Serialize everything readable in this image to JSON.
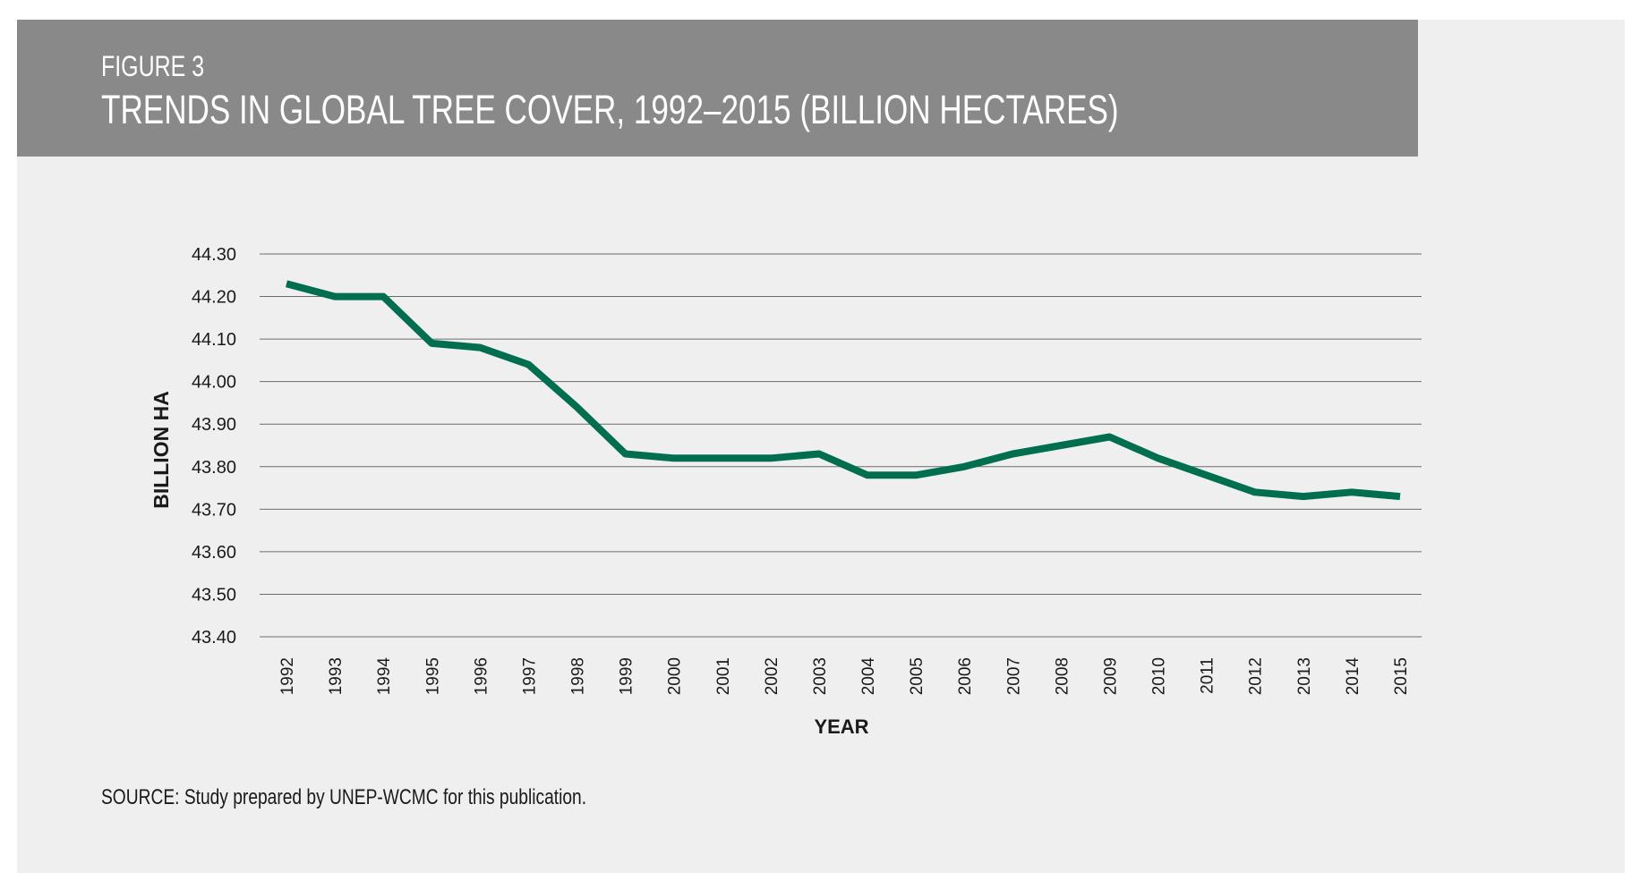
{
  "figure": {
    "label": "FIGURE 3",
    "title": "TRENDS IN GLOBAL TREE COVER, 1992–2015 (BILLION HECTARES)"
  },
  "source_note": "SOURCE: Study prepared by UNEP-WCMC for this publication.",
  "colors": {
    "header_bg": "#898989",
    "panel_bg": "#efefef",
    "line": "#006e4f",
    "grid": "#6b6b6b"
  },
  "chart_data": {
    "type": "line",
    "title": "TRENDS IN GLOBAL TREE COVER, 1992–2015 (BILLION HECTARES)",
    "xlabel": "YEAR",
    "ylabel": "BILLION HA",
    "ylim": [
      43.4,
      44.3
    ],
    "yticks": [
      "44.30",
      "44.20",
      "44.10",
      "44.00",
      "43.90",
      "43.80",
      "43.70",
      "43.60",
      "43.50",
      "43.40"
    ],
    "grid": true,
    "categories": [
      "1992",
      "1993",
      "1994",
      "1995",
      "1996",
      "1997",
      "1998",
      "1999",
      "2000",
      "2001",
      "2002",
      "2003",
      "2004",
      "2005",
      "2006",
      "2007",
      "2008",
      "2009",
      "2010",
      "2011",
      "2012",
      "2013",
      "2014",
      "2015"
    ],
    "series": [
      {
        "values": [
          44.23,
          44.2,
          44.2,
          44.09,
          44.08,
          44.04,
          43.94,
          43.83,
          43.82,
          43.82,
          43.82,
          43.83,
          43.78,
          43.78,
          43.8,
          43.83,
          43.85,
          43.87,
          43.82,
          43.78,
          43.74,
          43.73,
          43.74,
          43.73
        ]
      }
    ]
  }
}
